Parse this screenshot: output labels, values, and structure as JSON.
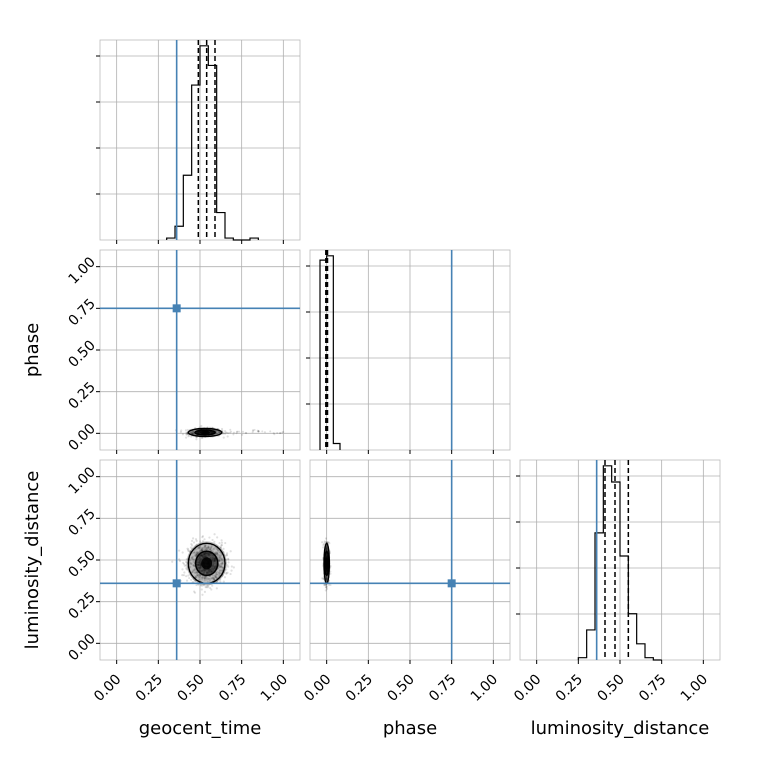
{
  "chart_data": {
    "type": "corner",
    "parameters": [
      "geocent_time",
      "phase",
      "luminosity_distance"
    ],
    "axis_range": [
      -0.1,
      1.1
    ],
    "ticks": [
      0.0,
      0.25,
      0.5,
      0.75,
      1.0
    ],
    "tick_labels": [
      "0.00",
      "0.25",
      "0.50",
      "0.75",
      "1.00"
    ],
    "grid": true,
    "colors": {
      "injection": "#4682b4",
      "hist": "#000000",
      "scatter": "#000000"
    },
    "injection_values": {
      "geocent_time": 0.36,
      "phase": 0.75,
      "luminosity_distance": 0.36
    },
    "histograms": {
      "geocent_time": {
        "bin_edges": [
          0.3,
          0.35,
          0.4,
          0.45,
          0.5,
          0.55,
          0.6,
          0.65,
          0.7,
          0.75,
          0.8,
          0.85
        ],
        "counts": [
          1,
          7,
          33,
          79,
          99,
          89,
          14,
          1,
          0,
          0,
          1
        ],
        "quantiles": [
          0.49,
          0.54,
          0.59
        ]
      },
      "phase": {
        "bin_edges": [
          -0.04,
          0.0,
          0.04,
          0.08
        ],
        "counts": [
          88,
          90,
          3
        ],
        "quantiles": [
          -0.005,
          0.0,
          0.005
        ]
      },
      "luminosity_distance": {
        "bin_edges": [
          0.25,
          0.3,
          0.35,
          0.4,
          0.45,
          0.5,
          0.55,
          0.6,
          0.65,
          0.7,
          0.75
        ],
        "counts": [
          1,
          13,
          55,
          84,
          77,
          45,
          20,
          7,
          1,
          0
        ],
        "quantiles": [
          0.41,
          0.47,
          0.55
        ]
      }
    },
    "joint": {
      "geocent_time_vs_phase": {
        "center": [
          0.53,
          0.005
        ],
        "spread": [
          0.05,
          0.012
        ],
        "tail_max_x": 1.0
      },
      "geocent_time_vs_luminosity_distance": {
        "center": [
          0.54,
          0.48
        ],
        "spread": [
          0.055,
          0.06
        ]
      },
      "phase_vs_luminosity_distance": {
        "center": [
          0.0,
          0.48
        ],
        "spread": [
          0.008,
          0.06
        ]
      }
    }
  }
}
